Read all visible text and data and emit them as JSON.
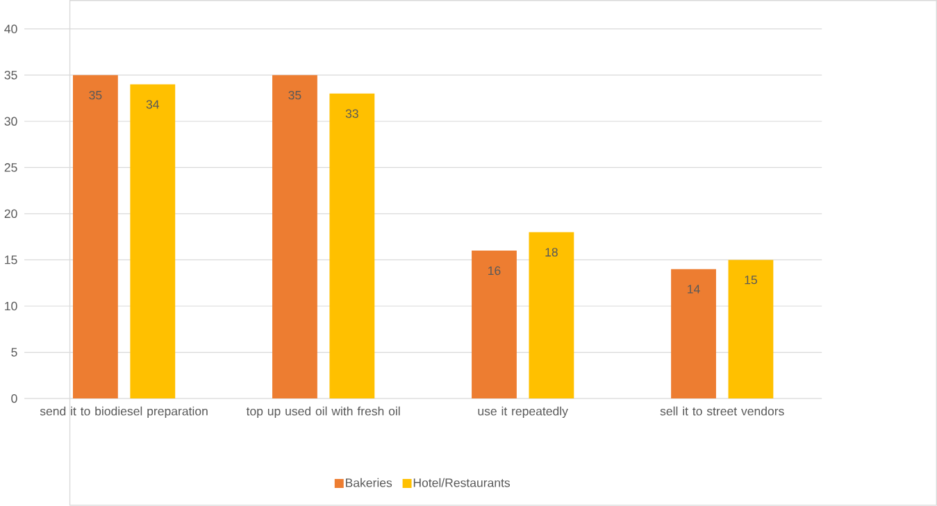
{
  "chart_data": {
    "type": "bar",
    "categories": [
      "send it to biodiesel preparation",
      "top up used oil with fresh oil",
      "use it repeatedly",
      "sell it to street vendors"
    ],
    "series": [
      {
        "name": "Bakeries",
        "color": "#ed7d31",
        "values": [
          35,
          35,
          16,
          14
        ]
      },
      {
        "name": "Hotel/Restaurants",
        "color": "#ffc000",
        "values": [
          34,
          33,
          18,
          15
        ]
      }
    ],
    "ylim": [
      0,
      40
    ],
    "yticks": [
      0,
      5,
      10,
      15,
      20,
      25,
      30,
      35,
      40
    ],
    "grid": "y",
    "legend": "bottom",
    "data_labels": true
  }
}
